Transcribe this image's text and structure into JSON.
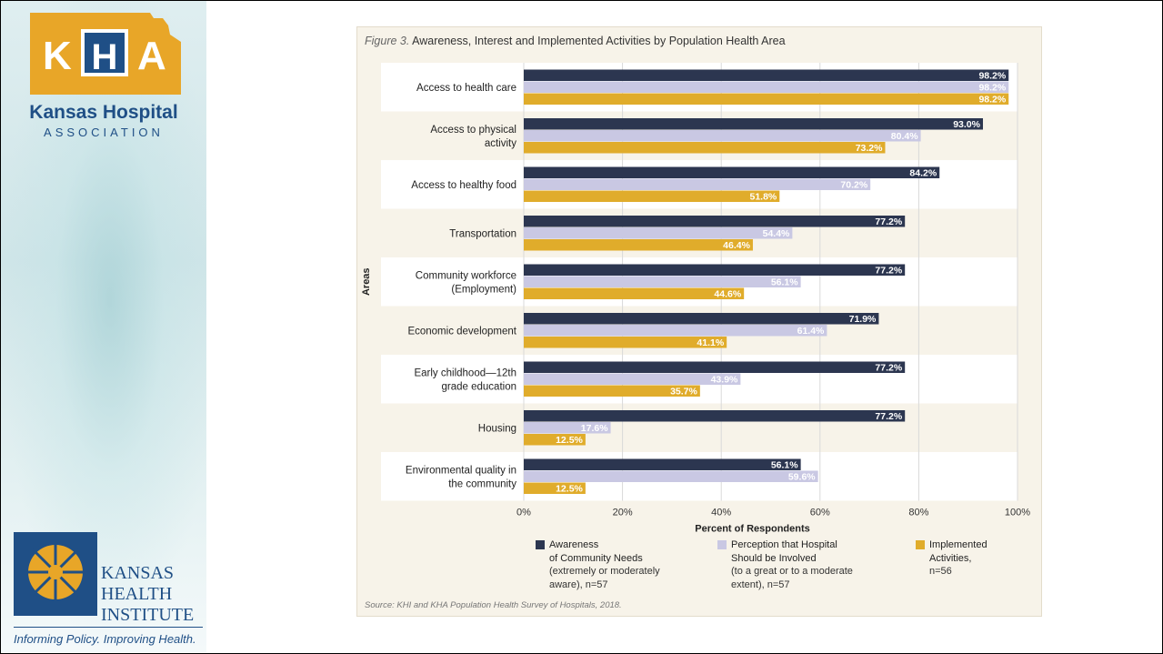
{
  "sidebar": {
    "kha_logo_text": "KHA",
    "kha_name": "Kansas Hospital",
    "kha_association": "ASSOCIATION",
    "khi_name_line1": "KANSAS",
    "khi_name_line2": "HEALTH",
    "khi_name_line3": "INSTITUTE",
    "khi_tagline": "Informing Policy. Improving Health."
  },
  "figure": {
    "label": "Figure 3.",
    "title": "Awareness, Interest and Implemented Activities by Population Health Area",
    "source": "Source: KHI and KHA Population Health Survey of Hospitals, 2018."
  },
  "legend": [
    {
      "title_line1": "Awareness",
      "title_line2": "of Community Needs",
      "desc_line1": "(extremely or moderately",
      "desc_line2": "aware), n=57",
      "color": "#2c3650"
    },
    {
      "title_line1": "Perception that Hospital",
      "title_line2": "Should be Involved",
      "desc_line1": "(to a great or to a moderate",
      "desc_line2": "extent), n=57",
      "color": "#c9c8e3"
    },
    {
      "title_line1": "Implemented",
      "title_line2": "Activities,",
      "desc_line1": "n=56",
      "desc_line2": "",
      "color": "#e0ac2b"
    }
  ],
  "chart_data": {
    "type": "bar",
    "orientation": "horizontal",
    "title": "Awareness, Interest and Implemented Activities by Population Health Area",
    "xlabel": "Percent of Respondents",
    "ylabel": "Areas",
    "xlim": [
      0,
      100
    ],
    "xticks": [
      "0%",
      "20%",
      "40%",
      "60%",
      "80%",
      "100%"
    ],
    "categories": [
      [
        "Access to health care"
      ],
      [
        "Access to physical",
        "activity"
      ],
      [
        "Access to healthy food"
      ],
      [
        "Transportation"
      ],
      [
        "Community workforce",
        "(Employment)"
      ],
      [
        "Economic development"
      ],
      [
        "Early childhood—12th",
        "grade education"
      ],
      [
        "Housing"
      ],
      [
        "Environmental quality in",
        "the community"
      ]
    ],
    "series": [
      {
        "name": "Awareness of Community Needs",
        "color": "#2c3650",
        "label_color": "#ffffff",
        "values": [
          98.2,
          93.0,
          84.2,
          77.2,
          77.2,
          71.9,
          77.2,
          77.2,
          56.1
        ],
        "labels": [
          "98.2%",
          "93.0%",
          "84.2%",
          "77.2%",
          "77.2%",
          "71.9%",
          "77.2%",
          "77.2%",
          "56.1%"
        ]
      },
      {
        "name": "Perception that Hospital Should be Involved",
        "color": "#c9c8e3",
        "label_color": "#ffffff",
        "values": [
          98.2,
          80.4,
          70.2,
          54.4,
          56.1,
          61.4,
          43.9,
          17.6,
          59.6
        ],
        "labels": [
          "98.2%",
          "80.4%",
          "70.2%",
          "54.4%",
          "56.1%",
          "61.4%",
          "43.9%",
          "17.6%",
          "59.6%"
        ]
      },
      {
        "name": "Implemented Activities",
        "color": "#e0ac2b",
        "label_color": "#ffffff",
        "values": [
          98.2,
          73.2,
          51.8,
          46.4,
          44.6,
          41.1,
          35.7,
          12.5,
          12.5
        ],
        "labels": [
          "98.2%",
          "73.2%",
          "51.8%",
          "46.4%",
          "44.6%",
          "41.1%",
          "35.7%",
          "12.5%",
          "12.5%"
        ]
      }
    ],
    "grid": true,
    "legend_position": "bottom"
  }
}
